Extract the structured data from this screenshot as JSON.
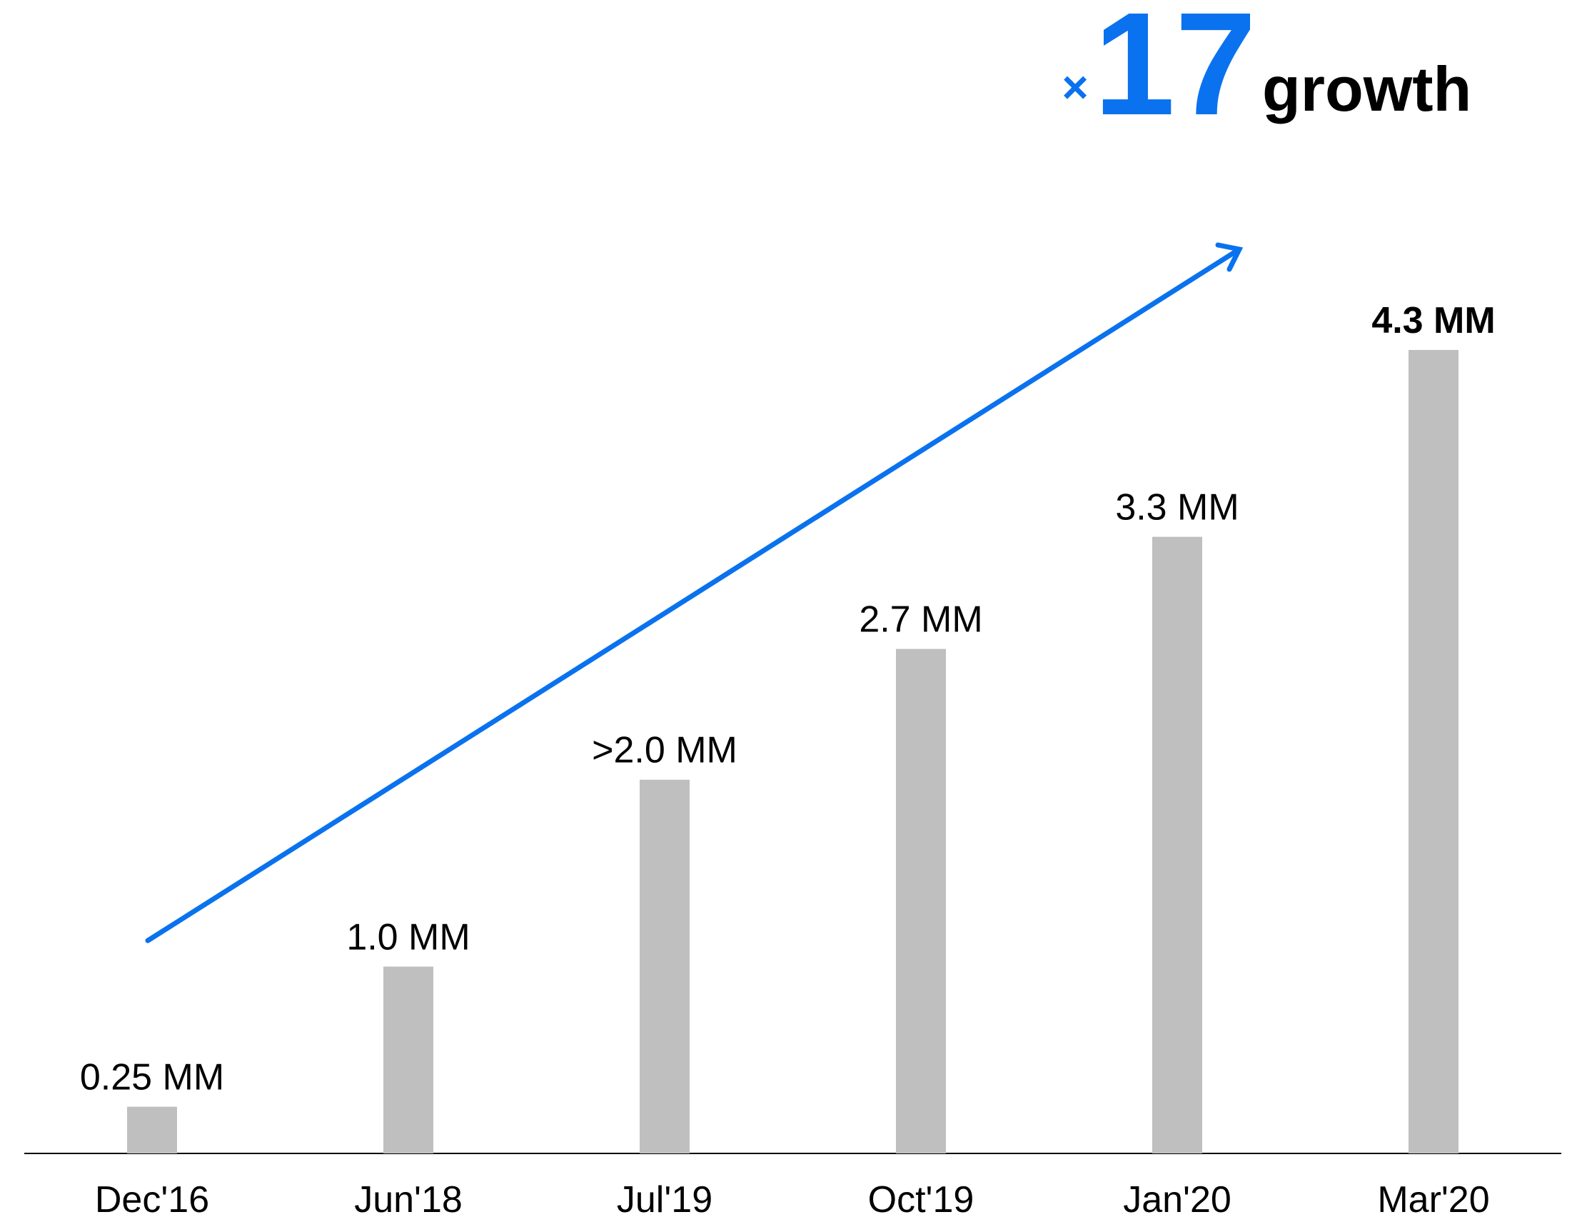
{
  "chart_data": {
    "type": "bar",
    "categories": [
      "Dec'16",
      "Jun'18",
      "Jul'19",
      "Oct'19",
      "Jan'20",
      "Mar'20"
    ],
    "values": [
      0.25,
      1.0,
      2.0,
      2.7,
      3.3,
      4.3
    ],
    "value_labels": [
      "0.25 MM",
      "1.0 MM",
      ">2.0 MM",
      "2.7 MM",
      "3.3 MM",
      "4.3 MM"
    ],
    "color": "#bfbfbf",
    "headline": {
      "sign": "×",
      "factor": "17",
      "text": "growth",
      "color": "#0a72ee"
    }
  }
}
